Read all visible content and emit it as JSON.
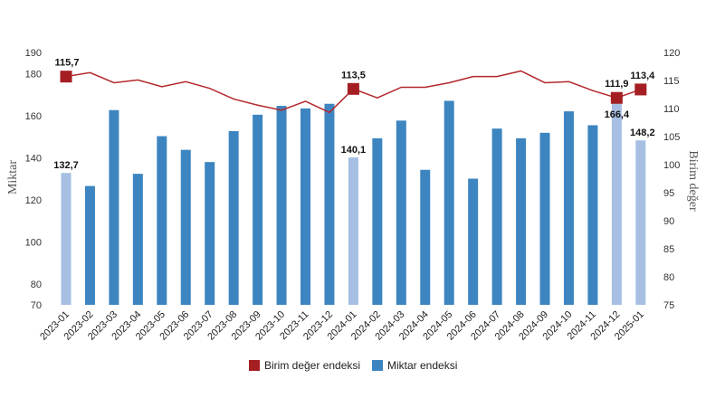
{
  "chart_data": {
    "type": "bar+line",
    "categories": [
      "2023-01",
      "2023-02",
      "2023-03",
      "2023-04",
      "2023-05",
      "2023-06",
      "2023-07",
      "2023-08",
      "2023-09",
      "2023-10",
      "2023-11",
      "2023-12",
      "2024-01",
      "2024-02",
      "2024-03",
      "2024-04",
      "2024-05",
      "2024-06",
      "2024-07",
      "2024-08",
      "2024-09",
      "2024-10",
      "2024-11",
      "2024-12",
      "2025-01"
    ],
    "series": [
      {
        "name": "Miktar endeksi",
        "type": "bar",
        "axis": "left",
        "values": [
          132.7,
          126.5,
          162.6,
          132.3,
          150.2,
          143.7,
          137.9,
          152.6,
          160.4,
          164.6,
          163.4,
          165.6,
          140.1,
          149.2,
          157.6,
          134.2,
          167.0,
          130.0,
          153.8,
          149.2,
          151.8,
          162.0,
          155.4,
          166.4,
          148.2
        ],
        "highlight_indices": [
          0,
          12,
          23,
          24
        ]
      },
      {
        "name": "Birim değer endeksi",
        "type": "line",
        "axis": "right",
        "values": [
          115.7,
          116.4,
          114.6,
          115.1,
          113.9,
          114.8,
          113.6,
          111.7,
          110.6,
          109.7,
          111.3,
          109.3,
          113.5,
          111.9,
          113.8,
          113.8,
          114.6,
          115.7,
          115.7,
          116.7,
          114.6,
          114.8,
          113.2,
          111.9,
          113.4
        ],
        "marker_indices": [
          0,
          12,
          23,
          24
        ]
      }
    ],
    "data_labels": [
      {
        "series": "Birim değer endeksi",
        "index": 0,
        "text": "115,7"
      },
      {
        "series": "Miktar endeksi",
        "index": 0,
        "text": "132,7"
      },
      {
        "series": "Birim değer endeksi",
        "index": 12,
        "text": "113,5"
      },
      {
        "series": "Miktar endeksi",
        "index": 12,
        "text": "140,1"
      },
      {
        "series": "Birim değer endeksi",
        "index": 23,
        "text": "111,9"
      },
      {
        "series": "Miktar endeksi",
        "index": 23,
        "text": "166,4"
      },
      {
        "series": "Birim değer endeksi",
        "index": 24,
        "text": "113,4"
      },
      {
        "series": "Miktar endeksi",
        "index": 24,
        "text": "148,2"
      }
    ],
    "left_axis": {
      "label": "Miktar",
      "ticks": [
        70,
        80,
        100,
        120,
        140,
        160,
        180,
        190
      ],
      "range": [
        70,
        190
      ]
    },
    "right_axis": {
      "label": "Birim değer",
      "ticks": [
        75,
        80,
        85,
        90,
        95,
        100,
        105,
        110,
        115,
        120
      ],
      "range": [
        75,
        120
      ]
    },
    "legend": [
      {
        "name": "Birim değer endeksi",
        "marker": "square"
      },
      {
        "name": "Miktar endeksi",
        "marker": "square"
      }
    ],
    "legend_position": "bottom-center",
    "grid": false,
    "colors": {
      "bar": "#3d85c0",
      "bar_highlight": "#a6bfe3",
      "line": "#b3282d",
      "marker": "#a41e22"
    }
  }
}
